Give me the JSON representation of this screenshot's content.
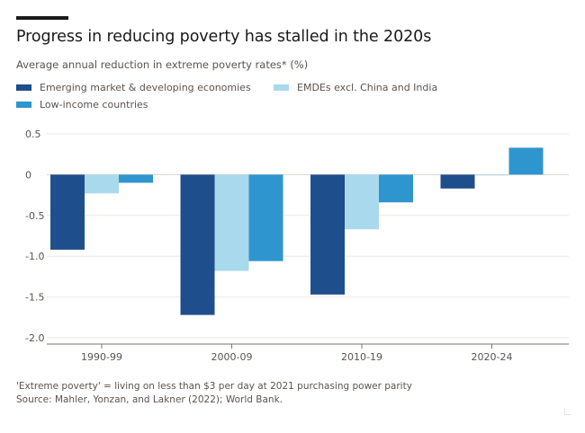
{
  "title": "Progress in reducing poverty has stalled in the 2020s",
  "subtitle": "Average annual reduction in extreme poverty rates* (%)",
  "footnote": "'Extreme poverty' = living on less than $3 per day at 2021 purchasing power parity",
  "source": "Source: Mahler, Yonzan, and Lakner (2022); World Bank.",
  "colors": {
    "emde": "#1f4e8c",
    "emde_excl": "#a9d9ec",
    "lic": "#2e95cf",
    "grid": "#ebe7e4",
    "text": "#5a5450"
  },
  "chart_data": {
    "type": "bar",
    "title": "Progress in reducing poverty has stalled in the 2020s",
    "subtitle": "Average annual reduction in extreme poverty rates* (%)",
    "categories": [
      "1990-99",
      "2000-09",
      "2010-19",
      "2020-24"
    ],
    "series": [
      {
        "name": "Emerging market & developing economies",
        "values": [
          -0.92,
          -1.72,
          -1.47,
          -0.17
        ]
      },
      {
        "name": "EMDEs excl. China and India",
        "values": [
          -0.23,
          -1.18,
          -0.67,
          -0.01
        ]
      },
      {
        "name": "Low-income countries",
        "values": [
          -0.1,
          -1.06,
          -0.34,
          0.33
        ]
      }
    ],
    "ylim": [
      -2.0,
      0.5
    ],
    "yticks": [
      0.5,
      0,
      -0.5,
      -1.0,
      -1.5,
      -2.0
    ],
    "ytick_labels": [
      "0.5",
      "0",
      "-0.5",
      "-1.0",
      "-1.5",
      "-2.0"
    ],
    "grid": true,
    "legend_position": "top-left"
  }
}
